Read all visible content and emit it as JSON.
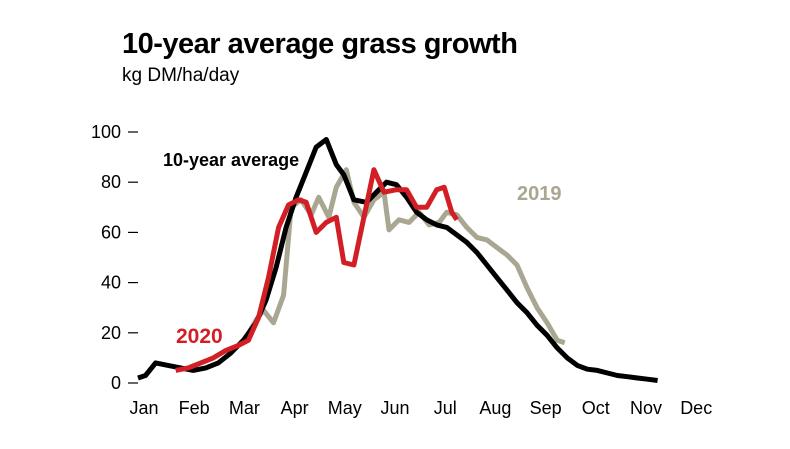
{
  "title": "10-year average grass growth",
  "subtitle": "kg DM/ha/day",
  "colors": {
    "ten_year": "#000000",
    "y2020": "#d21f26",
    "y2019": "#a9a792"
  },
  "chart_data": {
    "type": "line",
    "ylabel": "kg DM/ha/day",
    "xlabel": "",
    "ylim": [
      0,
      100
    ],
    "yticks": [
      0,
      20,
      40,
      60,
      80,
      100
    ],
    "xticks": [
      "Jan",
      "Feb",
      "Mar",
      "Apr",
      "May",
      "Jun",
      "Jul",
      "Aug",
      "Sep",
      "Oct",
      "Nov",
      "Dec"
    ],
    "x_unit": "month",
    "grid": false,
    "series": [
      {
        "name": "10-year average",
        "color": "#000000",
        "points": [
          [
            0,
            2
          ],
          [
            0.15,
            3
          ],
          [
            0.35,
            8
          ],
          [
            0.6,
            7
          ],
          [
            0.85,
            6
          ],
          [
            1.1,
            5
          ],
          [
            1.35,
            6
          ],
          [
            1.6,
            8
          ],
          [
            1.85,
            12
          ],
          [
            2.1,
            17
          ],
          [
            2.35,
            24
          ],
          [
            2.55,
            33
          ],
          [
            2.75,
            46
          ],
          [
            2.95,
            62
          ],
          [
            3.15,
            74
          ],
          [
            3.35,
            84
          ],
          [
            3.55,
            94
          ],
          [
            3.75,
            97
          ],
          [
            3.95,
            87
          ],
          [
            4.1,
            83
          ],
          [
            4.3,
            73
          ],
          [
            4.55,
            72
          ],
          [
            4.75,
            76
          ],
          [
            4.95,
            80
          ],
          [
            5.15,
            79
          ],
          [
            5.35,
            74
          ],
          [
            5.55,
            68
          ],
          [
            5.75,
            65
          ],
          [
            5.95,
            63
          ],
          [
            6.15,
            62
          ],
          [
            6.35,
            59
          ],
          [
            6.55,
            56
          ],
          [
            6.75,
            52
          ],
          [
            6.95,
            47
          ],
          [
            7.15,
            42
          ],
          [
            7.35,
            37
          ],
          [
            7.55,
            32
          ],
          [
            7.75,
            28
          ],
          [
            7.95,
            23
          ],
          [
            8.15,
            19
          ],
          [
            8.35,
            14
          ],
          [
            8.55,
            10
          ],
          [
            8.75,
            7
          ],
          [
            8.95,
            5.5
          ],
          [
            9.15,
            5
          ],
          [
            9.35,
            4
          ],
          [
            9.55,
            3
          ],
          [
            9.75,
            2.5
          ],
          [
            9.95,
            2
          ],
          [
            10.15,
            1.5
          ],
          [
            10.35,
            1
          ]
        ]
      },
      {
        "name": "2020",
        "color": "#d21f26",
        "points": [
          [
            0.75,
            5
          ],
          [
            1.0,
            6
          ],
          [
            1.25,
            8
          ],
          [
            1.5,
            10
          ],
          [
            1.75,
            13
          ],
          [
            2.0,
            15
          ],
          [
            2.2,
            17
          ],
          [
            2.4,
            26
          ],
          [
            2.6,
            42
          ],
          [
            2.8,
            62
          ],
          [
            3.0,
            71
          ],
          [
            3.2,
            73
          ],
          [
            3.35,
            72
          ],
          [
            3.55,
            60
          ],
          [
            3.75,
            64
          ],
          [
            3.95,
            66
          ],
          [
            4.1,
            48
          ],
          [
            4.3,
            47
          ],
          [
            4.5,
            66
          ],
          [
            4.7,
            85
          ],
          [
            4.9,
            76
          ],
          [
            5.15,
            77
          ],
          [
            5.35,
            77
          ],
          [
            5.55,
            70
          ],
          [
            5.75,
            70
          ],
          [
            5.95,
            77
          ],
          [
            6.1,
            78
          ],
          [
            6.25,
            68
          ],
          [
            6.35,
            65
          ]
        ]
      },
      {
        "name": "2019",
        "color": "#a9a792",
        "points": [
          [
            2.15,
            18
          ],
          [
            2.35,
            25
          ],
          [
            2.5,
            29
          ],
          [
            2.7,
            24
          ],
          [
            2.9,
            35
          ],
          [
            3.05,
            70
          ],
          [
            3.25,
            73
          ],
          [
            3.45,
            67
          ],
          [
            3.6,
            74
          ],
          [
            3.8,
            66
          ],
          [
            3.95,
            78
          ],
          [
            4.15,
            85
          ],
          [
            4.3,
            72
          ],
          [
            4.5,
            66
          ],
          [
            4.7,
            73
          ],
          [
            4.9,
            76
          ],
          [
            5.0,
            61
          ],
          [
            5.2,
            65
          ],
          [
            5.4,
            64
          ],
          [
            5.6,
            68
          ],
          [
            5.8,
            63
          ],
          [
            6.0,
            64
          ],
          [
            6.15,
            68
          ],
          [
            6.35,
            67
          ],
          [
            6.55,
            62
          ],
          [
            6.75,
            58
          ],
          [
            6.95,
            57
          ],
          [
            7.15,
            54
          ],
          [
            7.35,
            51
          ],
          [
            7.55,
            47
          ],
          [
            7.75,
            38
          ],
          [
            7.95,
            30
          ],
          [
            8.15,
            24
          ],
          [
            8.35,
            17
          ],
          [
            8.5,
            16
          ]
        ]
      }
    ],
    "annotations": [
      {
        "text": "10-year average",
        "series": "10-year average"
      },
      {
        "text": "2020",
        "series": "2020"
      },
      {
        "text": "2019",
        "series": "2019"
      }
    ]
  }
}
